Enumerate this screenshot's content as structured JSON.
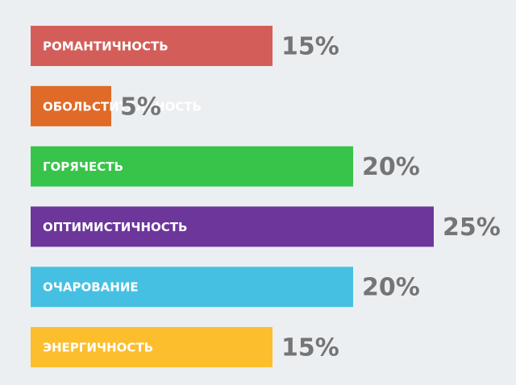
{
  "chart_data": {
    "type": "bar",
    "orientation": "horizontal",
    "categories": [
      "РОМАНТИЧНОСТЬ",
      "ОБОЛЬСТИТЕЛЬНОСТЬ",
      "ГОРЯЧЕСТЬ",
      "ОПТИМИСТИЧНОСТЬ",
      "ОЧАРОВАНИЕ",
      "ЭНЕРГИЧНОСТЬ"
    ],
    "values": [
      15,
      5,
      20,
      25,
      20,
      15
    ],
    "value_labels": [
      "15%",
      "5%",
      "20%",
      "25%",
      "20%",
      "15%"
    ],
    "colors": [
      "#d35e59",
      "#e06a27",
      "#38c44a",
      "#6c369b",
      "#46c0e2",
      "#fcbe2d"
    ]
  }
}
